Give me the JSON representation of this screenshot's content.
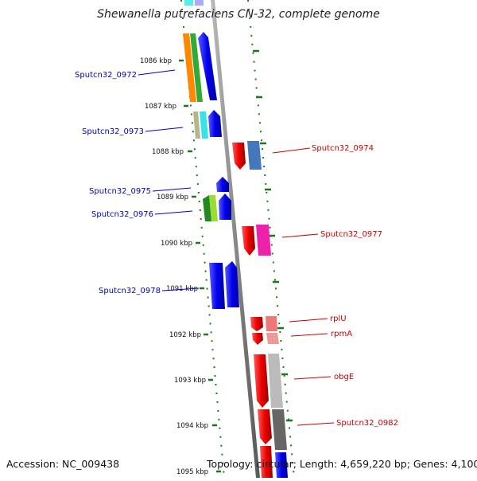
{
  "title": "Shewanella putrefaciens CN-32, complete genome",
  "footer": {
    "accession": "Accession: NC_009438",
    "summary": "Topology: circular; Length: 4,659,220 bp; Genes: 4,100"
  },
  "ticks": [
    "1086 kbp",
    "1087 kbp",
    "1088 kbp",
    "1089 kbp",
    "1090 kbp",
    "1091 kbp",
    "1092 kbp",
    "1093 kbp",
    "1094 kbp",
    "1095 kbp"
  ],
  "gene_labels": [
    {
      "text": "Sputcn32_0972",
      "side": "left",
      "color": "#0000cc"
    },
    {
      "text": "Sputcn32_0973",
      "side": "left",
      "color": "#0000cc"
    },
    {
      "text": "Sputcn32_0975",
      "side": "left",
      "color": "#0000cc"
    },
    {
      "text": "Sputcn32_0976",
      "side": "left",
      "color": "#0000cc"
    },
    {
      "text": "Sputcn32_0978",
      "side": "left",
      "color": "#0000cc"
    },
    {
      "text": "Sputcn32_0974",
      "side": "right",
      "color": "#cc0000"
    },
    {
      "text": "Sputcn32_0977",
      "side": "right",
      "color": "#cc0000"
    },
    {
      "text": "rplU",
      "side": "right",
      "color": "#cc0000"
    },
    {
      "text": "rpmA",
      "side": "right",
      "color": "#cc0000"
    },
    {
      "text": "obgE",
      "side": "right",
      "color": "#cc0000"
    },
    {
      "text": "Sputcn32_0982",
      "side": "right",
      "color": "#cc0000"
    }
  ],
  "colors": {
    "forward_strand": "#0000ee",
    "reverse_strand": "#ee0000",
    "backbone": "#888888",
    "tick_green": "#1a7a1a"
  }
}
